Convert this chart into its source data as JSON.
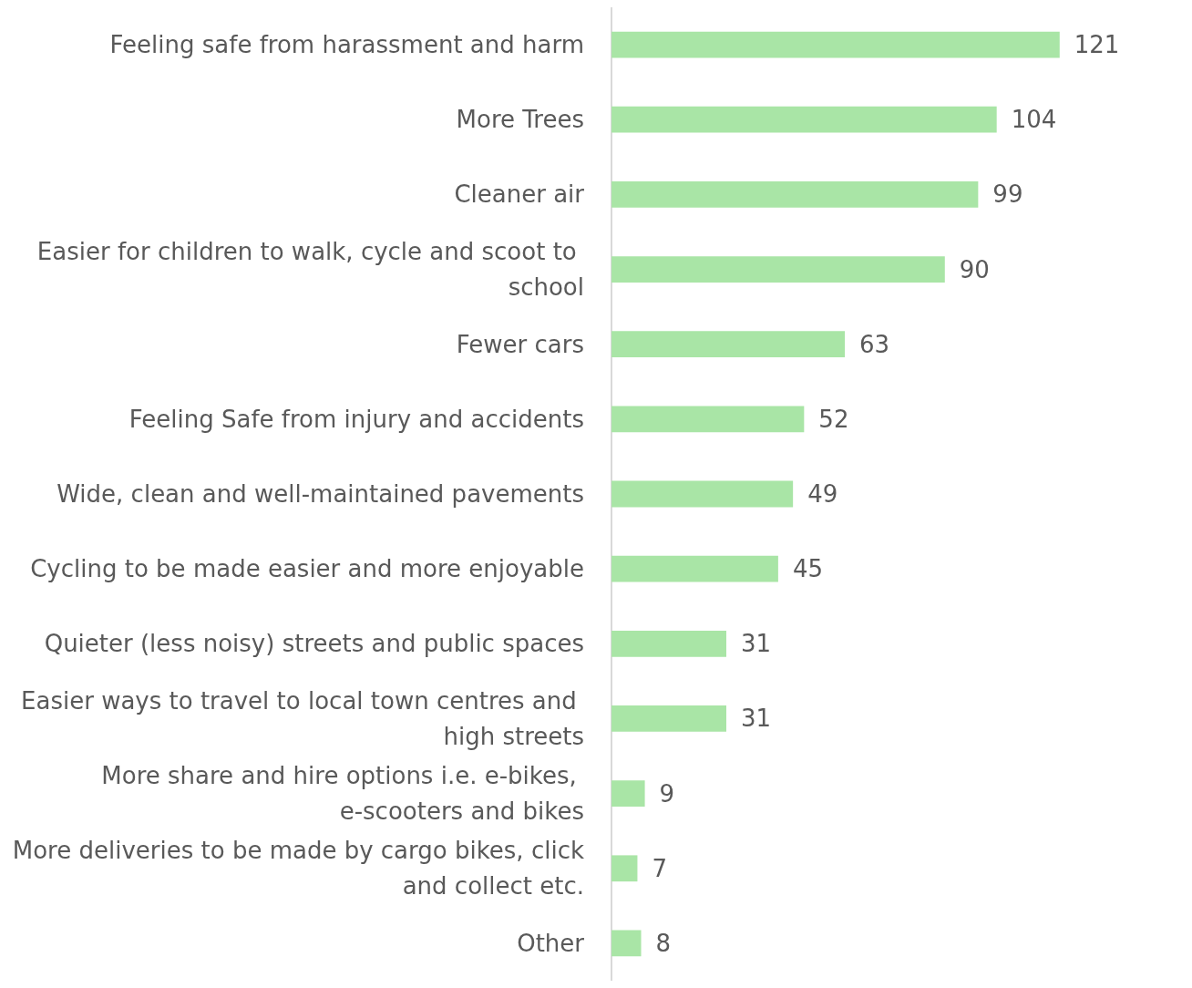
{
  "chart_data": {
    "type": "bar",
    "orientation": "horizontal",
    "categories": [
      "Feeling safe from harassment and harm",
      "More Trees",
      "Cleaner air",
      "Easier for children to walk, cycle and scoot to school",
      "Fewer cars",
      "Feeling Safe from injury and accidents",
      "Wide, clean and well-maintained pavements",
      "Cycling to be made easier and more enjoyable",
      "Quieter (less noisy) streets and public spaces",
      "Easier ways to travel to local town centres and high streets",
      "More share and hire options i.e. e-bikes, e-scooters and bikes",
      "More deliveries to be made by cargo bikes, click and collect etc.",
      "Other"
    ],
    "values": [
      121,
      104,
      99,
      90,
      63,
      52,
      49,
      45,
      31,
      31,
      9,
      7,
      8
    ],
    "color": "#a9e5a6",
    "data_labels": true
  }
}
